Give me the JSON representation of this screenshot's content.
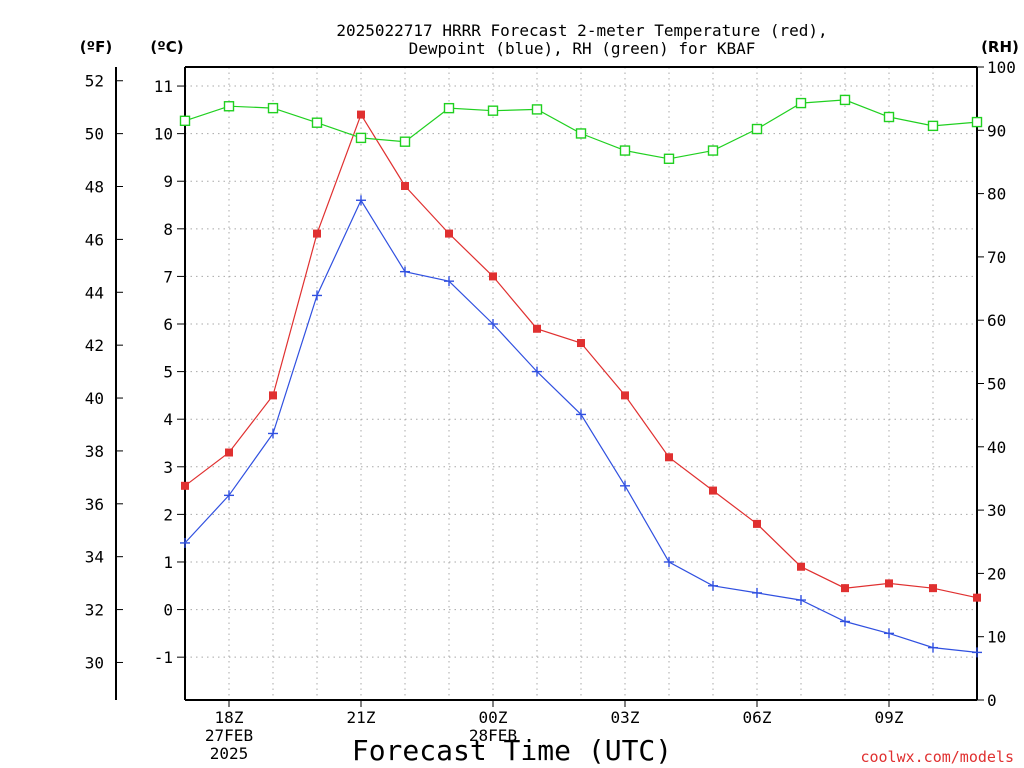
{
  "chart_data": {
    "type": "line",
    "title_line1": "2025022717 HRRR Forecast 2-meter Temperature (red),",
    "title_line2": "Dewpoint (blue), RH (green) for KBAF",
    "unit_f": "(ºF)",
    "unit_c": "(ºC)",
    "unit_rh": "(RH)",
    "xlabel": "Forecast Time (UTC)",
    "credit": "coolwx.com/models",
    "x_ticks": [
      {
        "hour": 18,
        "lines": [
          "18Z",
          "27FEB",
          "2025"
        ]
      },
      {
        "hour": 21,
        "lines": [
          "21Z"
        ]
      },
      {
        "hour": 24,
        "lines": [
          "00Z",
          "28FEB"
        ]
      },
      {
        "hour": 27,
        "lines": [
          "03Z"
        ]
      },
      {
        "hour": 30,
        "lines": [
          "06Z"
        ]
      },
      {
        "hour": 33,
        "lines": [
          "09Z"
        ]
      }
    ],
    "xlim_hours": [
      17,
      35
    ],
    "ylim_c": [
      -1.9,
      11.4
    ],
    "ylim_rh": [
      0,
      100
    ],
    "f_ticks": [
      "30",
      "32",
      "34",
      "36",
      "38",
      "40",
      "42",
      "44",
      "46",
      "48",
      "50",
      "52"
    ],
    "c_ticks": [
      "-1",
      "0",
      "1",
      "2",
      "3",
      "4",
      "5",
      "6",
      "7",
      "8",
      "9",
      "10",
      "11"
    ],
    "rh_ticks": [
      "0",
      "10",
      "20",
      "30",
      "40",
      "50",
      "60",
      "70",
      "80",
      "90",
      "100"
    ],
    "grid": true,
    "series": [
      {
        "name": "Temperature",
        "unit": "C",
        "color": "#e03030",
        "marker": "filled-square",
        "x": [
          17,
          18,
          19,
          20,
          21,
          22,
          23,
          24,
          25,
          26,
          27,
          28,
          29,
          30,
          31,
          32,
          33,
          34,
          35
        ],
        "y": [
          2.6,
          3.3,
          4.5,
          7.9,
          10.4,
          8.9,
          7.9,
          7.0,
          5.9,
          5.6,
          4.5,
          3.2,
          2.5,
          1.8,
          0.9,
          0.45,
          0.55,
          0.45,
          0.25
        ]
      },
      {
        "name": "Dewpoint",
        "unit": "C",
        "color": "#3050e0",
        "marker": "plus",
        "x": [
          17,
          18,
          19,
          20,
          21,
          22,
          23,
          24,
          25,
          26,
          27,
          28,
          29,
          30,
          31,
          32,
          33,
          34,
          35
        ],
        "y": [
          1.4,
          2.4,
          3.7,
          6.6,
          8.6,
          7.1,
          6.9,
          6.0,
          5.0,
          4.1,
          2.6,
          1.0,
          0.5,
          0.35,
          0.2,
          -0.25,
          -0.5,
          -0.8,
          -0.9
        ]
      },
      {
        "name": "RH",
        "unit": "%",
        "color": "#20d020",
        "marker": "open-square",
        "x": [
          17,
          18,
          19,
          20,
          21,
          22,
          23,
          24,
          25,
          26,
          27,
          28,
          29,
          30,
          31,
          32,
          33,
          34,
          35
        ],
        "y": [
          91.5,
          93.8,
          93.5,
          91.2,
          88.8,
          88.2,
          93.5,
          93.1,
          93.3,
          89.5,
          86.8,
          85.5,
          86.8,
          90.2,
          94.3,
          94.8,
          92.1,
          90.7,
          91.3
        ]
      }
    ]
  }
}
